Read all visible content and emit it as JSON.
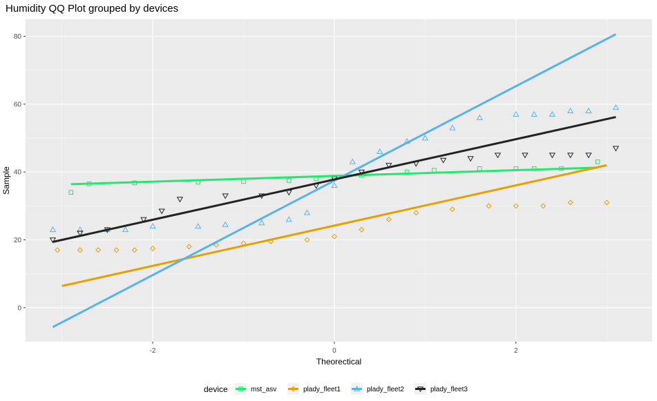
{
  "chart_data": {
    "type": "scatter",
    "title": "Humidity QQ Plot grouped by devices",
    "xlabel": "Theorectical",
    "ylabel": "Sample",
    "xlim": [
      -3.4,
      3.5
    ],
    "ylim": [
      -10,
      85
    ],
    "x_ticks": [
      -2,
      0,
      2
    ],
    "x_tick_labels": [
      "-2",
      "0",
      "2"
    ],
    "y_ticks": [
      0,
      20,
      40,
      60,
      80
    ],
    "y_tick_labels": [
      "0",
      "20",
      "40",
      "60",
      "80"
    ],
    "grid": true,
    "legend": {
      "title": "device",
      "placement": "bottom"
    },
    "series": [
      {
        "name": "mst_asv",
        "color": "#23e86e",
        "shape": "square",
        "points": [
          [
            -2.9,
            34
          ],
          [
            -2.7,
            36.5
          ],
          [
            -2.2,
            36.8
          ],
          [
            -1.5,
            37
          ],
          [
            -1.0,
            37.2
          ],
          [
            -0.5,
            37.5
          ],
          [
            -0.2,
            38
          ],
          [
            0.0,
            38.5
          ],
          [
            0.3,
            39
          ],
          [
            0.8,
            40
          ],
          [
            1.1,
            40.5
          ],
          [
            1.6,
            41
          ],
          [
            2.0,
            41
          ],
          [
            2.2,
            41
          ],
          [
            2.5,
            41
          ],
          [
            2.9,
            43
          ]
        ],
        "line": [
          [
            -2.9,
            36.4
          ],
          [
            2.9,
            41.3
          ]
        ]
      },
      {
        "name": "plady_fleet1",
        "color": "#e69f00",
        "shape": "diamond",
        "points": [
          [
            -3.05,
            17
          ],
          [
            -2.8,
            17
          ],
          [
            -2.6,
            17
          ],
          [
            -2.4,
            17
          ],
          [
            -2.2,
            17
          ],
          [
            -2.0,
            17.5
          ],
          [
            -1.6,
            18
          ],
          [
            -1.3,
            18.5
          ],
          [
            -1.0,
            19
          ],
          [
            -0.7,
            19.5
          ],
          [
            -0.3,
            20
          ],
          [
            0.0,
            21
          ],
          [
            0.3,
            23
          ],
          [
            0.6,
            26
          ],
          [
            0.9,
            28
          ],
          [
            1.3,
            29
          ],
          [
            1.7,
            30
          ],
          [
            2.0,
            30
          ],
          [
            2.3,
            30
          ],
          [
            2.6,
            31
          ],
          [
            3.0,
            31
          ]
        ],
        "line": [
          [
            -3.0,
            6.4
          ],
          [
            3.0,
            42.0
          ]
        ]
      },
      {
        "name": "plady_fleet2",
        "color": "#56b4e9",
        "shape": "triangle",
        "points": [
          [
            -3.1,
            23
          ],
          [
            -2.8,
            23
          ],
          [
            -2.5,
            23
          ],
          [
            -2.3,
            23
          ],
          [
            -2.0,
            24
          ],
          [
            -1.5,
            24
          ],
          [
            -1.2,
            24.5
          ],
          [
            -0.8,
            25
          ],
          [
            -0.5,
            26
          ],
          [
            -0.3,
            28
          ],
          [
            0.0,
            36
          ],
          [
            0.2,
            43
          ],
          [
            0.5,
            46
          ],
          [
            0.8,
            49
          ],
          [
            1.0,
            50
          ],
          [
            1.3,
            53
          ],
          [
            1.6,
            56
          ],
          [
            2.0,
            57
          ],
          [
            2.2,
            57
          ],
          [
            2.4,
            57
          ],
          [
            2.6,
            58
          ],
          [
            2.8,
            58
          ],
          [
            3.1,
            59
          ]
        ],
        "line": [
          [
            -3.1,
            -5.7
          ],
          [
            3.1,
            80.6
          ]
        ]
      },
      {
        "name": "plady_fleet3",
        "color": "#222222",
        "shape": "triangle-down",
        "points": [
          [
            -3.1,
            20
          ],
          [
            -2.8,
            22
          ],
          [
            -2.5,
            23
          ],
          [
            -2.1,
            26
          ],
          [
            -1.9,
            28.5
          ],
          [
            -1.7,
            32
          ],
          [
            -1.2,
            33
          ],
          [
            -0.8,
            33
          ],
          [
            -0.5,
            34
          ],
          [
            -0.2,
            36
          ],
          [
            0.0,
            38
          ],
          [
            0.3,
            40
          ],
          [
            0.6,
            42
          ],
          [
            0.9,
            42.5
          ],
          [
            1.2,
            43.5
          ],
          [
            1.5,
            44
          ],
          [
            1.8,
            45
          ],
          [
            2.1,
            45
          ],
          [
            2.4,
            45
          ],
          [
            2.6,
            45
          ],
          [
            2.8,
            45
          ],
          [
            3.1,
            47
          ]
        ],
        "line": [
          [
            -3.1,
            19.4
          ],
          [
            3.1,
            56.2
          ]
        ]
      }
    ]
  }
}
